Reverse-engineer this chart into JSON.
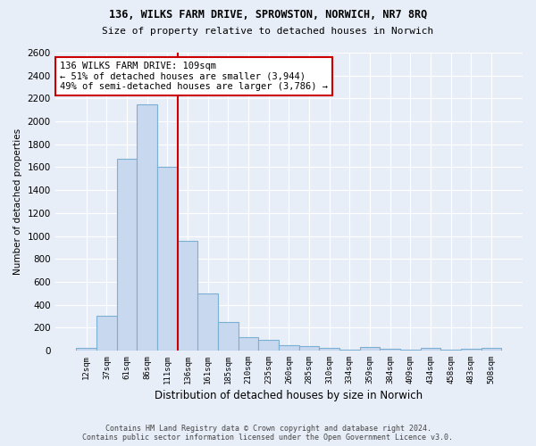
{
  "title1": "136, WILKS FARM DRIVE, SPROWSTON, NORWICH, NR7 8RQ",
  "title2": "Size of property relative to detached houses in Norwich",
  "xlabel": "Distribution of detached houses by size in Norwich",
  "ylabel": "Number of detached properties",
  "footer1": "Contains HM Land Registry data © Crown copyright and database right 2024.",
  "footer2": "Contains public sector information licensed under the Open Government Licence v3.0.",
  "annotation_line1": "136 WILKS FARM DRIVE: 109sqm",
  "annotation_line2": "← 51% of detached houses are smaller (3,944)",
  "annotation_line3": "49% of semi-detached houses are larger (3,786) →",
  "bar_color": "#c8d8ee",
  "bar_edge_color": "#7bafd4",
  "vline_color": "#cc0000",
  "vline_x_index": 4,
  "categories": [
    "12sqm",
    "37sqm",
    "61sqm",
    "86sqm",
    "111sqm",
    "136sqm",
    "161sqm",
    "185sqm",
    "210sqm",
    "235sqm",
    "260sqm",
    "285sqm",
    "310sqm",
    "334sqm",
    "359sqm",
    "384sqm",
    "409sqm",
    "434sqm",
    "458sqm",
    "483sqm",
    "508sqm"
  ],
  "values": [
    25,
    300,
    1670,
    2150,
    1600,
    960,
    500,
    250,
    120,
    95,
    50,
    40,
    20,
    10,
    30,
    15,
    5,
    20,
    5,
    15,
    20
  ],
  "ylim": [
    0,
    2600
  ],
  "yticks": [
    0,
    200,
    400,
    600,
    800,
    1000,
    1200,
    1400,
    1600,
    1800,
    2000,
    2200,
    2400,
    2600
  ],
  "bg_color": "#e8eef8",
  "grid_color": "#ffffff",
  "figsize": [
    6.0,
    5.0
  ],
  "dpi": 100
}
